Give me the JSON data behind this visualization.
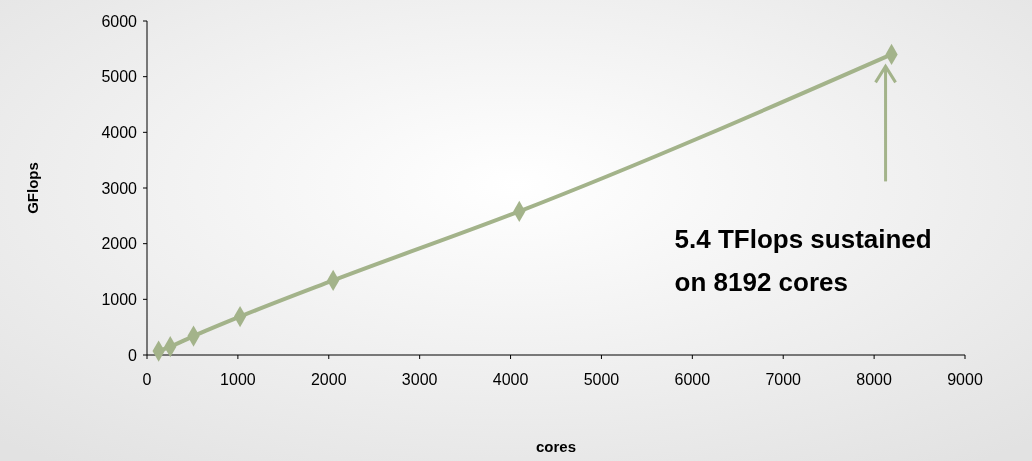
{
  "chart_data": {
    "type": "line",
    "xlabel": "cores",
    "ylabel": "GFlops",
    "x": [
      128,
      256,
      512,
      1024,
      2048,
      4096,
      8192
    ],
    "series": [
      {
        "color": "#a3b38a",
        "values": [
          70,
          150,
          340,
          690,
          1340,
          2580,
          5400
        ]
      }
    ],
    "xlim": [
      0,
      9000
    ],
    "xticks": [
      0,
      1000,
      2000,
      3000,
      4000,
      5000,
      6000,
      7000,
      8000,
      9000
    ],
    "ylim": [
      0,
      6000
    ],
    "yticks": [
      0,
      1000,
      2000,
      3000,
      4000,
      5000,
      6000
    ],
    "marker": "diamond",
    "line_style": "solid",
    "grid": false,
    "annotations": [
      "5.4 TFlops sustained\non 8192 cores"
    ]
  }
}
